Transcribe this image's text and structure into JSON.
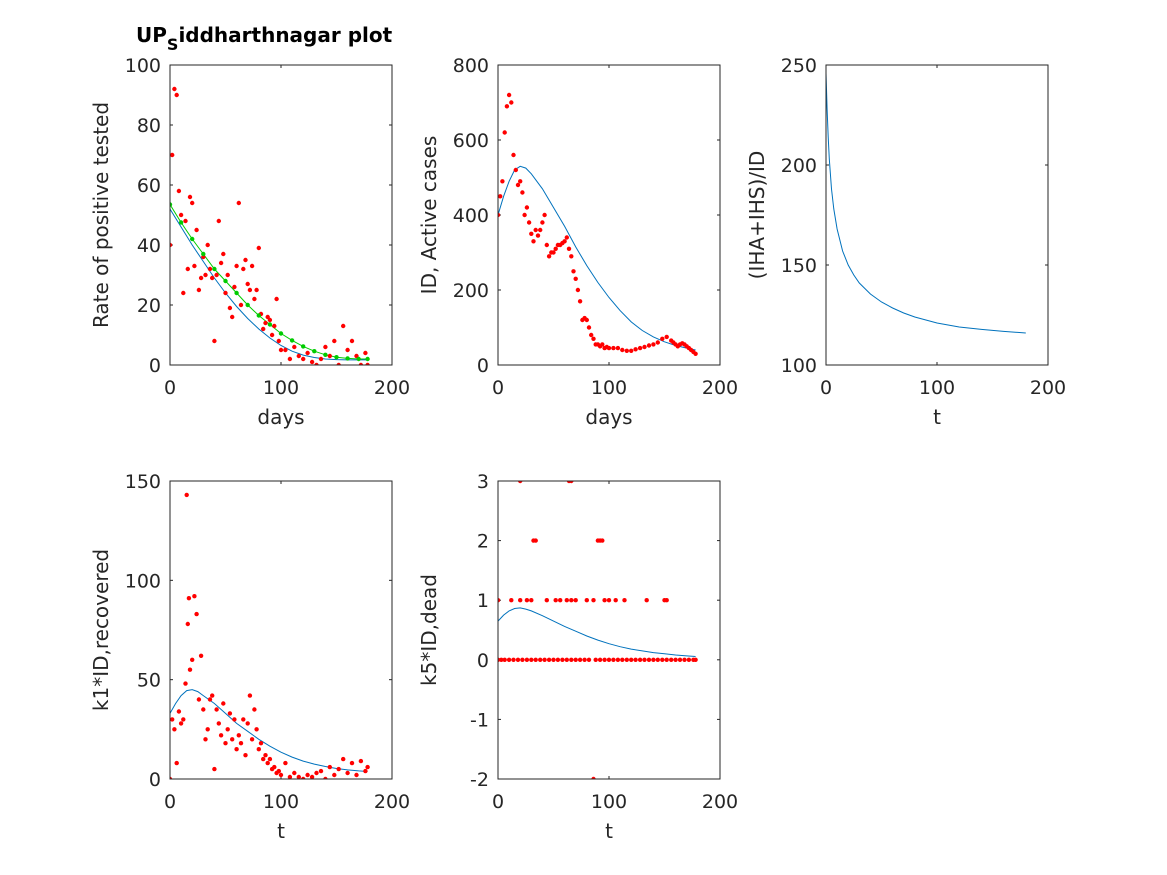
{
  "figure": {
    "title_main": "UP",
    "title_sub": "S",
    "title_rest": "iddharthnagar plot"
  },
  "colors": {
    "data": "#ff0000",
    "fit": "#0072bd",
    "fit2": "#00cc00"
  },
  "chart_data": [
    {
      "id": "p1",
      "type": "scatter",
      "xlabel": "days",
      "ylabel": "Rate of positive tested",
      "xlim": [
        0,
        200
      ],
      "ylim": [
        0,
        100
      ],
      "xticks": [
        0,
        100,
        200
      ],
      "yticks": [
        0,
        20,
        40,
        60,
        80,
        100
      ],
      "series": [
        {
          "kind": "points",
          "color": "#ff0000",
          "x": [
            0,
            2,
            4,
            6,
            8,
            10,
            12,
            14,
            16,
            18,
            20,
            22,
            24,
            26,
            28,
            30,
            32,
            34,
            36,
            38,
            40,
            42,
            44,
            46,
            48,
            50,
            52,
            54,
            56,
            58,
            60,
            62,
            64,
            66,
            68,
            70,
            72,
            74,
            76,
            78,
            80,
            82,
            84,
            86,
            88,
            90,
            92,
            94,
            96,
            98,
            100,
            104,
            108,
            112,
            116,
            120,
            124,
            128,
            132,
            136,
            140,
            144,
            148,
            152,
            156,
            160,
            164,
            168,
            172,
            176,
            178
          ],
          "y": [
            40,
            70,
            92,
            90,
            58,
            50,
            24,
            48,
            32,
            56,
            54,
            33,
            45,
            25,
            29,
            36,
            30,
            40,
            32,
            29,
            8,
            30,
            48,
            34,
            37,
            24,
            30,
            19,
            16,
            26,
            33,
            54,
            20,
            32,
            35,
            27,
            25,
            33,
            22,
            25,
            39,
            17,
            12,
            14,
            16,
            15,
            10,
            13,
            22,
            8,
            5,
            5,
            2,
            6,
            3,
            2,
            4,
            1,
            0,
            2,
            6,
            3,
            8,
            0,
            13,
            5,
            8,
            3,
            0,
            4,
            0
          ]
        },
        {
          "kind": "points",
          "color": "#00cc00",
          "x": [
            0,
            10,
            20,
            30,
            40,
            50,
            60,
            70,
            80,
            90,
            100,
            110,
            120,
            130,
            140,
            150,
            160,
            170,
            178
          ],
          "y": [
            53.5,
            47.5,
            42,
            37,
            32,
            28,
            24,
            20,
            16.5,
            13.5,
            10.5,
            8.2,
            6.2,
            4.6,
            3.4,
            2.6,
            2.2,
            2,
            2
          ]
        },
        {
          "kind": "line",
          "color": "#00cc00",
          "x": [
            0,
            10,
            20,
            30,
            40,
            50,
            60,
            70,
            80,
            90,
            100,
            110,
            120,
            130,
            140,
            150,
            160,
            170,
            178
          ],
          "y": [
            53.5,
            47.5,
            42,
            37,
            32,
            28,
            24,
            20,
            16.5,
            13.5,
            10.5,
            8.2,
            6.2,
            4.6,
            3.4,
            2.6,
            2.2,
            2,
            2
          ]
        },
        {
          "kind": "line",
          "color": "#0072bd",
          "x": [
            0,
            10,
            20,
            30,
            40,
            50,
            60,
            70,
            80,
            90,
            100,
            110,
            120,
            130,
            140,
            150,
            160,
            170,
            178
          ],
          "y": [
            52,
            46,
            40,
            34.5,
            29,
            24,
            19.5,
            15.5,
            12,
            9,
            6.5,
            4.6,
            3.3,
            2.5,
            2,
            1.8,
            1.7,
            1.7,
            1.7
          ]
        }
      ]
    },
    {
      "id": "p2",
      "type": "scatter",
      "xlabel": "days",
      "ylabel": "ID, Active cases",
      "xlim": [
        0,
        200
      ],
      "ylim": [
        0,
        800
      ],
      "xticks": [
        0,
        100,
        200
      ],
      "yticks": [
        0,
        200,
        400,
        600,
        800
      ],
      "series": [
        {
          "kind": "points",
          "color": "#ff0000",
          "x": [
            0,
            2,
            4,
            6,
            8,
            10,
            12,
            14,
            16,
            18,
            20,
            22,
            24,
            26,
            28,
            30,
            32,
            34,
            36,
            38,
            40,
            42,
            44,
            46,
            48,
            50,
            52,
            54,
            56,
            58,
            60,
            62,
            64,
            66,
            68,
            70,
            72,
            74,
            76,
            78,
            80,
            82,
            84,
            86,
            88,
            90,
            92,
            94,
            96,
            98,
            100,
            104,
            108,
            112,
            116,
            120,
            124,
            128,
            132,
            136,
            140,
            144,
            148,
            152,
            156,
            158,
            160,
            162,
            164,
            166,
            168,
            170,
            172,
            174,
            176,
            178
          ],
          "y": [
            400,
            450,
            490,
            620,
            690,
            720,
            700,
            560,
            520,
            480,
            490,
            460,
            400,
            420,
            380,
            350,
            330,
            360,
            345,
            360,
            380,
            400,
            320,
            290,
            300,
            300,
            310,
            320,
            320,
            325,
            330,
            340,
            310,
            290,
            250,
            230,
            200,
            170,
            120,
            125,
            120,
            100,
            80,
            70,
            55,
            55,
            50,
            55,
            45,
            48,
            45,
            45,
            45,
            40,
            38,
            38,
            42,
            45,
            48,
            52,
            55,
            60,
            70,
            75,
            65,
            60,
            55,
            50,
            55,
            58,
            55,
            50,
            45,
            40,
            35,
            30
          ]
        },
        {
          "kind": "line",
          "color": "#0072bd",
          "x": [
            0,
            5,
            10,
            15,
            20,
            25,
            30,
            40,
            50,
            60,
            70,
            80,
            90,
            100,
            110,
            120,
            130,
            140,
            150,
            160,
            170,
            178
          ],
          "y": [
            400,
            450,
            490,
            520,
            530,
            525,
            510,
            470,
            420,
            370,
            315,
            265,
            220,
            180,
            145,
            115,
            92,
            75,
            62,
            52,
            45,
            40
          ]
        }
      ]
    },
    {
      "id": "p3",
      "type": "line",
      "xlabel": "t",
      "ylabel": "(IHA+IHS)/ID",
      "xlim": [
        0,
        200
      ],
      "ylim": [
        100,
        250
      ],
      "xticks": [
        0,
        100,
        200
      ],
      "yticks": [
        100,
        150,
        200,
        250
      ],
      "series": [
        {
          "kind": "line",
          "color": "#0072bd",
          "x": [
            0,
            1,
            2,
            3,
            5,
            7,
            10,
            15,
            20,
            25,
            30,
            40,
            50,
            60,
            70,
            80,
            90,
            100,
            120,
            140,
            160,
            180
          ],
          "y": [
            246,
            228,
            214,
            203,
            188,
            178,
            168,
            157,
            150,
            145,
            141,
            135.5,
            131.5,
            128.5,
            126,
            124,
            122.5,
            121,
            119,
            117.8,
            116.8,
            116
          ]
        }
      ]
    },
    {
      "id": "p4",
      "type": "scatter",
      "xlabel": "t",
      "ylabel": "k1*ID,recovered",
      "xlim": [
        0,
        200
      ],
      "ylim": [
        0,
        150
      ],
      "xticks": [
        0,
        100,
        200
      ],
      "yticks": [
        0,
        50,
        100,
        150
      ],
      "series": [
        {
          "kind": "points",
          "color": "#ff0000",
          "x": [
            0,
            2,
            4,
            6,
            8,
            10,
            12,
            14,
            15,
            16,
            17,
            18,
            20,
            22,
            24,
            26,
            28,
            30,
            32,
            34,
            36,
            38,
            40,
            42,
            44,
            46,
            48,
            50,
            52,
            54,
            56,
            58,
            60,
            62,
            64,
            66,
            68,
            70,
            72,
            74,
            76,
            78,
            80,
            82,
            84,
            86,
            88,
            90,
            92,
            94,
            96,
            98,
            100,
            104,
            108,
            112,
            116,
            120,
            124,
            128,
            132,
            136,
            140,
            144,
            148,
            152,
            156,
            160,
            164,
            168,
            172,
            176,
            178
          ],
          "y": [
            0,
            30,
            25,
            8,
            34,
            28,
            30,
            48,
            143,
            78,
            91,
            55,
            60,
            92,
            83,
            40,
            62,
            35,
            20,
            25,
            40,
            42,
            5,
            35,
            28,
            22,
            38,
            18,
            25,
            33,
            20,
            30,
            15,
            22,
            18,
            30,
            12,
            28,
            42,
            20,
            35,
            25,
            15,
            18,
            10,
            12,
            8,
            10,
            5,
            6,
            3,
            4,
            2,
            8,
            1,
            3,
            1,
            0,
            2,
            1,
            3,
            4,
            0,
            6,
            2,
            5,
            10,
            3,
            8,
            2,
            9,
            4,
            6
          ]
        },
        {
          "kind": "line",
          "color": "#0072bd",
          "x": [
            0,
            5,
            10,
            15,
            20,
            25,
            30,
            40,
            50,
            60,
            70,
            80,
            90,
            100,
            110,
            120,
            130,
            140,
            150,
            160,
            170,
            178
          ],
          "y": [
            33,
            38,
            42,
            44.5,
            45,
            44,
            42,
            38,
            33,
            28,
            24,
            20,
            16.5,
            13.5,
            11,
            9,
            7.5,
            6.3,
            5.3,
            4.6,
            4.1,
            3.8
          ]
        }
      ]
    },
    {
      "id": "p5",
      "type": "scatter",
      "xlabel": "t",
      "ylabel": "k5*ID,dead",
      "xlim": [
        0,
        200
      ],
      "ylim": [
        -2,
        3
      ],
      "xticks": [
        0,
        100,
        200
      ],
      "yticks": [
        -2,
        -1,
        0,
        1,
        2,
        3
      ],
      "series": [
        {
          "kind": "points",
          "color": "#ff0000",
          "x": [
            0,
            3,
            6,
            10,
            14,
            18,
            22,
            26,
            30,
            34,
            38,
            42,
            46,
            50,
            54,
            58,
            62,
            66,
            70,
            74,
            78,
            82,
            88,
            92,
            96,
            100,
            104,
            108,
            112,
            116,
            120,
            124,
            128,
            132,
            136,
            140,
            144,
            148,
            152,
            156,
            160,
            164,
            168,
            172,
            176,
            178,
            0,
            12,
            20,
            26,
            30,
            44,
            52,
            56,
            62,
            66,
            70,
            80,
            86,
            96,
            100,
            106,
            114,
            134,
            150,
            152,
            32,
            34,
            90,
            92,
            94,
            20,
            64,
            66,
            86
          ],
          "y": [
            0,
            0,
            0,
            0,
            0,
            0,
            0,
            0,
            0,
            0,
            0,
            0,
            0,
            0,
            0,
            0,
            0,
            0,
            0,
            0,
            0,
            0,
            0,
            0,
            0,
            0,
            0,
            0,
            0,
            0,
            0,
            0,
            0,
            0,
            0,
            0,
            0,
            0,
            0,
            0,
            0,
            0,
            0,
            0,
            0,
            0,
            1,
            1,
            1,
            1,
            1,
            1,
            1,
            1,
            1,
            1,
            1,
            1,
            1,
            1,
            1,
            1,
            1,
            1,
            1,
            1,
            2,
            2,
            2,
            2,
            2,
            3,
            3,
            3,
            -2
          ]
        },
        {
          "kind": "line",
          "color": "#0072bd",
          "x": [
            0,
            5,
            10,
            15,
            20,
            25,
            30,
            40,
            50,
            60,
            70,
            80,
            90,
            100,
            110,
            120,
            130,
            140,
            150,
            160,
            170,
            178
          ],
          "y": [
            0.65,
            0.75,
            0.82,
            0.86,
            0.87,
            0.85,
            0.82,
            0.74,
            0.65,
            0.56,
            0.48,
            0.4,
            0.33,
            0.27,
            0.22,
            0.18,
            0.15,
            0.12,
            0.1,
            0.08,
            0.065,
            0.055
          ]
        }
      ]
    }
  ]
}
